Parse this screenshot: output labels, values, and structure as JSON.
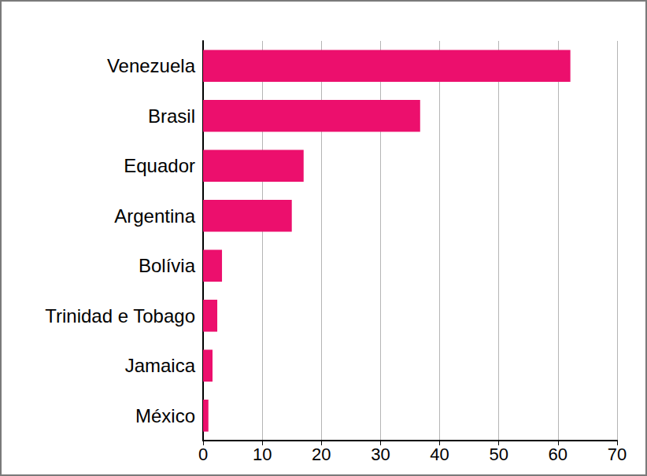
{
  "chart_data": {
    "type": "bar",
    "orientation": "horizontal",
    "categories": [
      "Venezuela",
      "Brasil",
      "Equador",
      "Argentina",
      "Bolívia",
      "Trinidad e Tobago",
      "Jamaica",
      "México"
    ],
    "values": [
      62.1,
      36.7,
      17.0,
      15.0,
      3.2,
      2.4,
      1.6,
      0.9
    ],
    "color": "#ec0f6d",
    "xlim": [
      0,
      70
    ],
    "xticks": [
      0,
      10,
      20,
      30,
      40,
      50,
      60,
      70
    ],
    "grid": true
  }
}
